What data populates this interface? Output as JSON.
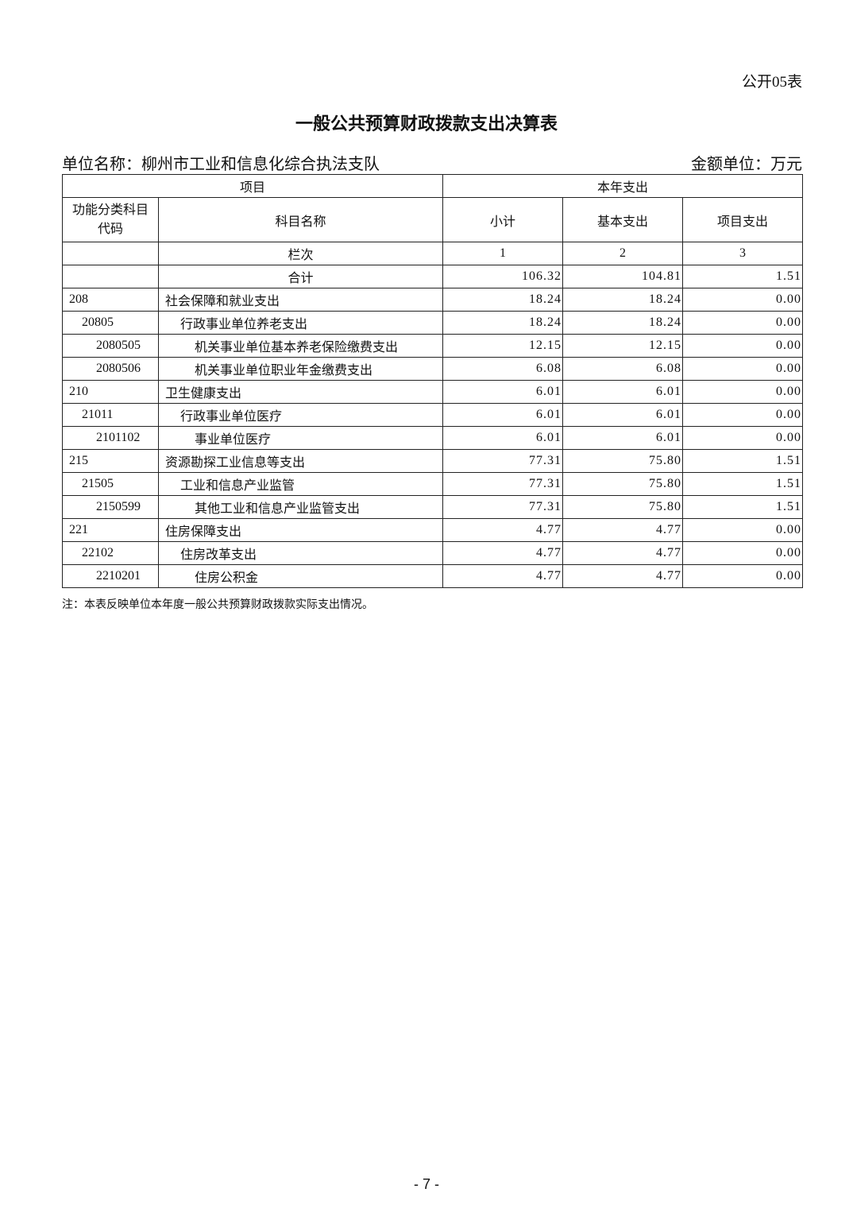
{
  "header": {
    "form_number": "公开05表",
    "title": "一般公共预算财政拨款支出决算表",
    "unit_name": "单位名称：柳州市工业和信息化综合执法支队",
    "amount_unit": "金额单位：万元"
  },
  "table": {
    "group_headers": [
      "项目",
      "本年支出"
    ],
    "columns": [
      "功能分类科目代码",
      "科目名称",
      "小计",
      "基本支出",
      "项目支出"
    ],
    "index_row": {
      "label": "栏次",
      "numbers": [
        "1",
        "2",
        "3"
      ]
    },
    "total_row": {
      "label": "合计",
      "values": [
        "106.32",
        "104.81",
        "1.51"
      ]
    },
    "rows": [
      [
        "208",
        "社会保障和就业支出",
        "18.24",
        "18.24",
        "0.00"
      ],
      [
        "20805",
        "行政事业单位养老支出",
        "18.24",
        "18.24",
        "0.00"
      ],
      [
        "2080505",
        "机关事业单位基本养老保险缴费支出",
        "12.15",
        "12.15",
        "0.00"
      ],
      [
        "2080506",
        "机关事业单位职业年金缴费支出",
        "6.08",
        "6.08",
        "0.00"
      ],
      [
        "210",
        "卫生健康支出",
        "6.01",
        "6.01",
        "0.00"
      ],
      [
        "21011",
        "行政事业单位医疗",
        "6.01",
        "6.01",
        "0.00"
      ],
      [
        "2101102",
        "事业单位医疗",
        "6.01",
        "6.01",
        "0.00"
      ],
      [
        "215",
        "资源勘探工业信息等支出",
        "77.31",
        "75.80",
        "1.51"
      ],
      [
        "21505",
        "工业和信息产业监管",
        "77.31",
        "75.80",
        "1.51"
      ],
      [
        "2150599",
        "其他工业和信息产业监管支出",
        "77.31",
        "75.80",
        "1.51"
      ],
      [
        "221",
        "住房保障支出",
        "4.77",
        "4.77",
        "0.00"
      ],
      [
        "22102",
        "住房改革支出",
        "4.77",
        "4.77",
        "0.00"
      ],
      [
        "2210201",
        "住房公积金",
        "4.77",
        "4.77",
        "0.00"
      ]
    ]
  },
  "note": "注：本表反映单位本年度一般公共预算财政拨款实际支出情况。",
  "page_number": "- 7 -"
}
